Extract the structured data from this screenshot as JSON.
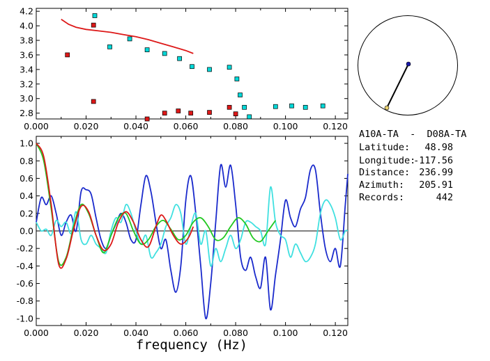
{
  "chart_data": [
    {
      "type": "scatter",
      "xlim": [
        0.0,
        0.125
      ],
      "ylim": [
        2.72,
        4.24
      ],
      "xticks": [
        "0.000",
        "0.020",
        "0.040",
        "0.060",
        "0.080",
        "0.100",
        "0.120"
      ],
      "yticks": [
        "2.8",
        "3.0",
        "3.2",
        "3.4",
        "3.6",
        "3.8",
        "4.0",
        "4.2"
      ],
      "grid": false,
      "series": [
        {
          "color": "#00d8d8",
          "marker": "square",
          "points": [
            [
              0.0235,
              4.14
            ],
            [
              0.0295,
              3.71
            ],
            [
              0.0375,
              3.82
            ],
            [
              0.0445,
              3.67
            ],
            [
              0.0515,
              3.62
            ],
            [
              0.0575,
              3.55
            ],
            [
              0.0625,
              3.44
            ],
            [
              0.0695,
              3.4
            ],
            [
              0.0775,
              3.43
            ],
            [
              0.0805,
              3.27
            ],
            [
              0.0818,
              3.05
            ],
            [
              0.0835,
              2.88
            ],
            [
              0.0855,
              2.75
            ],
            [
              0.096,
              2.89
            ],
            [
              0.1025,
              2.9
            ],
            [
              0.108,
              2.88
            ],
            [
              0.115,
              2.9
            ]
          ]
        },
        {
          "color": "#dd1818",
          "marker": "square",
          "points": [
            [
              0.0125,
              3.6
            ],
            [
              0.023,
              4.01
            ],
            [
              0.023,
              2.96
            ],
            [
              0.0445,
              2.72
            ],
            [
              0.0515,
              2.8
            ],
            [
              0.057,
              2.83
            ],
            [
              0.062,
              2.8
            ],
            [
              0.0695,
              2.81
            ],
            [
              0.0775,
              2.88
            ],
            [
              0.08,
              2.79
            ]
          ]
        },
        {
          "color": "#dd1818",
          "marker": "line",
          "points": [
            [
              0.01,
              4.09
            ],
            [
              0.013,
              4.02
            ],
            [
              0.016,
              3.98
            ],
            [
              0.02,
              3.95
            ],
            [
              0.025,
              3.93
            ],
            [
              0.03,
              3.91
            ],
            [
              0.035,
              3.88
            ],
            [
              0.04,
              3.85
            ],
            [
              0.045,
              3.81
            ],
            [
              0.05,
              3.76
            ],
            [
              0.055,
              3.71
            ],
            [
              0.06,
              3.66
            ],
            [
              0.063,
              3.62
            ]
          ]
        }
      ]
    },
    {
      "type": "line",
      "xlabel": "frequency (Hz)",
      "xlim": [
        0.0,
        0.125
      ],
      "ylim": [
        -1.08,
        1.08
      ],
      "xticks": [
        "0.000",
        "0.020",
        "0.040",
        "0.060",
        "0.080",
        "0.100",
        "0.120"
      ],
      "yticks": [
        "1.0",
        "0.8",
        "0.6",
        "0.4",
        "0.2",
        "0.0",
        "-0.2",
        "-0.4",
        "-0.6",
        "-0.8",
        "-1.0"
      ],
      "grid": false,
      "zero_line": true,
      "series": [
        {
          "color": "#1a2acc",
          "points": [
            [
              0.0,
              0.1
            ],
            [
              0.002,
              0.38
            ],
            [
              0.004,
              0.3
            ],
            [
              0.006,
              0.4
            ],
            [
              0.008,
              0.2
            ],
            [
              0.01,
              -0.05
            ],
            [
              0.012,
              0.1
            ],
            [
              0.014,
              0.18
            ],
            [
              0.016,
              0.0
            ],
            [
              0.018,
              0.45
            ],
            [
              0.02,
              0.47
            ],
            [
              0.022,
              0.42
            ],
            [
              0.024,
              0.15
            ],
            [
              0.026,
              -0.1
            ],
            [
              0.028,
              -0.2
            ],
            [
              0.03,
              -0.05
            ],
            [
              0.032,
              0.08
            ],
            [
              0.034,
              0.2
            ],
            [
              0.036,
              0.1
            ],
            [
              0.038,
              -0.1
            ],
            [
              0.04,
              -0.1
            ],
            [
              0.042,
              0.3
            ],
            [
              0.044,
              0.63
            ],
            [
              0.046,
              0.45
            ],
            [
              0.048,
              0.1
            ],
            [
              0.05,
              -0.2
            ],
            [
              0.052,
              -0.1
            ],
            [
              0.054,
              -0.45
            ],
            [
              0.056,
              -0.7
            ],
            [
              0.058,
              -0.4
            ],
            [
              0.06,
              0.35
            ],
            [
              0.062,
              0.63
            ],
            [
              0.064,
              0.2
            ],
            [
              0.066,
              -0.4
            ],
            [
              0.068,
              -1.0
            ],
            [
              0.07,
              -0.6
            ],
            [
              0.072,
              0.1
            ],
            [
              0.074,
              0.75
            ],
            [
              0.076,
              0.5
            ],
            [
              0.078,
              0.75
            ],
            [
              0.08,
              0.3
            ],
            [
              0.082,
              -0.3
            ],
            [
              0.084,
              -0.45
            ],
            [
              0.086,
              -0.3
            ],
            [
              0.088,
              -0.52
            ],
            [
              0.09,
              -0.65
            ],
            [
              0.092,
              -0.3
            ],
            [
              0.094,
              -0.9
            ],
            [
              0.096,
              -0.5
            ],
            [
              0.098,
              -0.1
            ],
            [
              0.1,
              0.35
            ],
            [
              0.102,
              0.15
            ],
            [
              0.104,
              0.05
            ],
            [
              0.106,
              0.25
            ],
            [
              0.108,
              0.38
            ],
            [
              0.11,
              0.7
            ],
            [
              0.112,
              0.7
            ],
            [
              0.114,
              0.2
            ],
            [
              0.116,
              -0.2
            ],
            [
              0.118,
              -0.35
            ],
            [
              0.12,
              -0.2
            ],
            [
              0.122,
              -0.4
            ],
            [
              0.124,
              0.3
            ],
            [
              0.125,
              0.65
            ]
          ]
        },
        {
          "color": "#40e0e0",
          "points": [
            [
              0.0,
              0.1
            ],
            [
              0.002,
              0.0
            ],
            [
              0.004,
              0.02
            ],
            [
              0.006,
              -0.05
            ],
            [
              0.008,
              0.12
            ],
            [
              0.01,
              0.05
            ],
            [
              0.012,
              0.1
            ],
            [
              0.014,
              -0.03
            ],
            [
              0.016,
              0.22
            ],
            [
              0.018,
              -0.1
            ],
            [
              0.02,
              -0.15
            ],
            [
              0.022,
              -0.05
            ],
            [
              0.024,
              -0.15
            ],
            [
              0.026,
              -0.2
            ],
            [
              0.028,
              -0.25
            ],
            [
              0.03,
              0.0
            ],
            [
              0.032,
              0.15
            ],
            [
              0.034,
              0.1
            ],
            [
              0.036,
              0.3
            ],
            [
              0.038,
              0.2
            ],
            [
              0.04,
              0.0
            ],
            [
              0.042,
              -0.15
            ],
            [
              0.044,
              -0.05
            ],
            [
              0.046,
              -0.3
            ],
            [
              0.048,
              -0.25
            ],
            [
              0.05,
              -0.15
            ],
            [
              0.052,
              0.05
            ],
            [
              0.054,
              0.15
            ],
            [
              0.056,
              0.3
            ],
            [
              0.058,
              0.2
            ],
            [
              0.06,
              -0.15
            ],
            [
              0.062,
              0.05
            ],
            [
              0.064,
              0.2
            ],
            [
              0.066,
              -0.15
            ],
            [
              0.068,
              0.0
            ],
            [
              0.07,
              -0.4
            ],
            [
              0.072,
              -0.2
            ],
            [
              0.074,
              -0.35
            ],
            [
              0.076,
              -0.2
            ],
            [
              0.078,
              -0.05
            ],
            [
              0.08,
              -0.2
            ],
            [
              0.082,
              -0.1
            ],
            [
              0.084,
              0.1
            ],
            [
              0.086,
              0.1
            ],
            [
              0.088,
              0.05
            ],
            [
              0.09,
              0.0
            ],
            [
              0.092,
              -0.15
            ],
            [
              0.094,
              0.5
            ],
            [
              0.096,
              0.1
            ],
            [
              0.098,
              -0.05
            ],
            [
              0.1,
              -0.1
            ],
            [
              0.102,
              -0.3
            ],
            [
              0.104,
              -0.15
            ],
            [
              0.106,
              -0.25
            ],
            [
              0.108,
              -0.35
            ],
            [
              0.11,
              -0.3
            ],
            [
              0.112,
              -0.15
            ],
            [
              0.114,
              0.2
            ],
            [
              0.116,
              0.35
            ],
            [
              0.118,
              0.3
            ],
            [
              0.12,
              0.15
            ],
            [
              0.122,
              -0.1
            ],
            [
              0.124,
              0.0
            ],
            [
              0.125,
              0.0
            ]
          ]
        },
        {
          "color": "#22c822",
          "points": [
            [
              0.0,
              1.0
            ],
            [
              0.003,
              0.8
            ],
            [
              0.006,
              0.25
            ],
            [
              0.009,
              -0.35
            ],
            [
              0.012,
              -0.3
            ],
            [
              0.015,
              0.05
            ],
            [
              0.018,
              0.3
            ],
            [
              0.021,
              0.2
            ],
            [
              0.024,
              -0.05
            ],
            [
              0.027,
              -0.25
            ],
            [
              0.03,
              -0.05
            ],
            [
              0.033,
              0.15
            ],
            [
              0.036,
              0.2
            ],
            [
              0.039,
              0.0
            ],
            [
              0.042,
              -0.15
            ],
            [
              0.045,
              -0.1
            ],
            [
              0.048,
              0.05
            ],
            [
              0.051,
              0.12
            ],
            [
              0.054,
              0.02
            ],
            [
              0.057,
              -0.1
            ],
            [
              0.06,
              -0.05
            ],
            [
              0.063,
              0.1
            ],
            [
              0.066,
              0.15
            ],
            [
              0.069,
              0.05
            ],
            [
              0.072,
              -0.1
            ],
            [
              0.075,
              -0.08
            ],
            [
              0.078,
              0.05
            ],
            [
              0.081,
              0.15
            ],
            [
              0.084,
              0.08
            ],
            [
              0.087,
              -0.08
            ],
            [
              0.09,
              -0.12
            ],
            [
              0.093,
              0.0
            ],
            [
              0.096,
              0.12
            ]
          ]
        },
        {
          "color": "#dd1818",
          "points": [
            [
              0.0,
              1.0
            ],
            [
              0.003,
              0.85
            ],
            [
              0.006,
              0.3
            ],
            [
              0.009,
              -0.38
            ],
            [
              0.012,
              -0.32
            ],
            [
              0.015,
              0.02
            ],
            [
              0.018,
              0.28
            ],
            [
              0.021,
              0.22
            ],
            [
              0.024,
              -0.05
            ],
            [
              0.027,
              -0.22
            ],
            [
              0.03,
              -0.15
            ],
            [
              0.033,
              0.1
            ],
            [
              0.036,
              0.22
            ],
            [
              0.039,
              0.1
            ],
            [
              0.042,
              -0.1
            ],
            [
              0.045,
              -0.18
            ],
            [
              0.048,
              0.05
            ],
            [
              0.05,
              0.18
            ],
            [
              0.052,
              0.12
            ],
            [
              0.055,
              -0.05
            ],
            [
              0.058,
              -0.15
            ],
            [
              0.061,
              -0.08
            ],
            [
              0.063,
              0.05
            ]
          ]
        }
      ]
    }
  ],
  "globe": {
    "line_color": "#000000",
    "receiver_color": "#1a1aaa",
    "source_color": "#e8d070",
    "azimuth": 205.91
  },
  "station_info": {
    "pair": "A10A-TA  -  D08A-TA",
    "latitude_label": "Latitude:",
    "latitude_value": "48.98",
    "longitude_label": "Longitude:",
    "longitude_value": "-117.56",
    "distance_label": "Distance:",
    "distance_value": "236.99",
    "azimuth_label": "Azimuth:",
    "azimuth_value": "205.91",
    "records_label": "Records:",
    "records_value": "442"
  }
}
